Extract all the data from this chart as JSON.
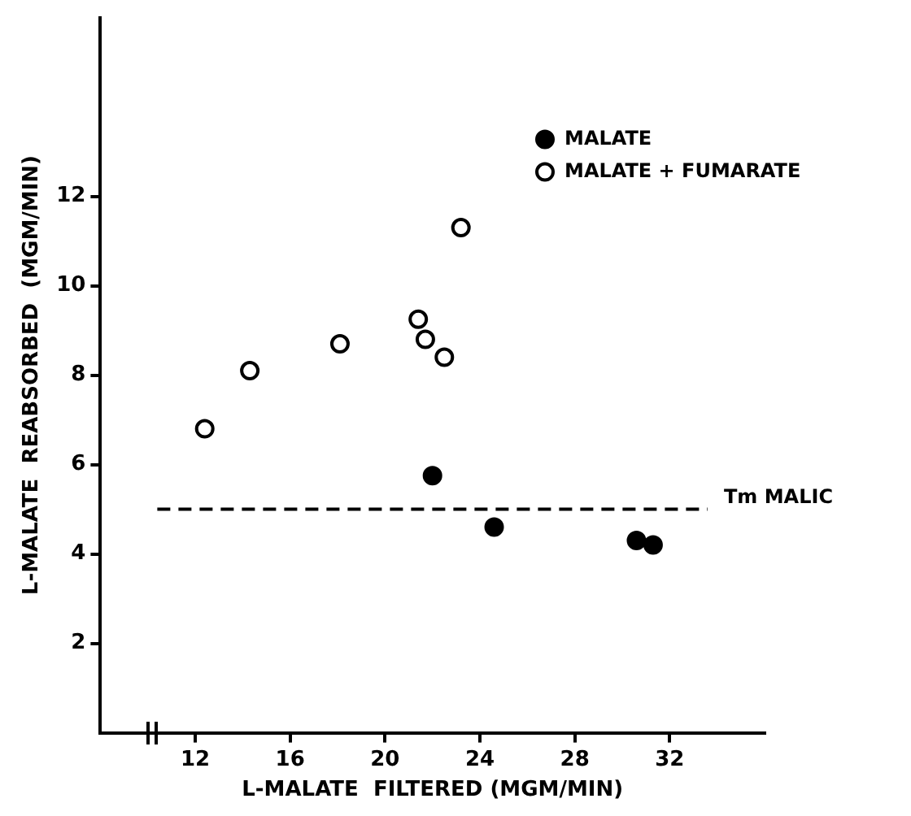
{
  "chart_data": {
    "type": "scatter",
    "xlabel": "L-MALATE  FILTERED (MGM/MIN)",
    "ylabel": "L-MALATE  REABSORBED  (MGM/MIN)",
    "xlim": [
      8,
      36
    ],
    "xticks": [
      12,
      16,
      20,
      24,
      28,
      32
    ],
    "ylim": [
      0,
      16
    ],
    "yticks": [
      2,
      4,
      6,
      8,
      10,
      12
    ],
    "series": [
      {
        "name": "MALATE",
        "color": "#000000",
        "x": [
          22.0,
          24.6,
          30.6,
          31.3
        ],
        "values": [
          5.75,
          4.6,
          4.3,
          4.2
        ]
      },
      {
        "name": "MALATE + FUMARATE",
        "color": "#000000",
        "x": [
          12.4,
          14.3,
          18.1,
          21.4,
          21.7,
          22.5,
          23.2
        ],
        "values": [
          6.8,
          8.1,
          8.7,
          9.25,
          8.8,
          8.4,
          11.3
        ]
      }
    ],
    "ref_lines": [
      {
        "axis": "y",
        "value": 5,
        "label": "Tm MALIC",
        "line_style": "dashed"
      }
    ],
    "marker": "circle",
    "grid": false,
    "legend": "top right"
  }
}
